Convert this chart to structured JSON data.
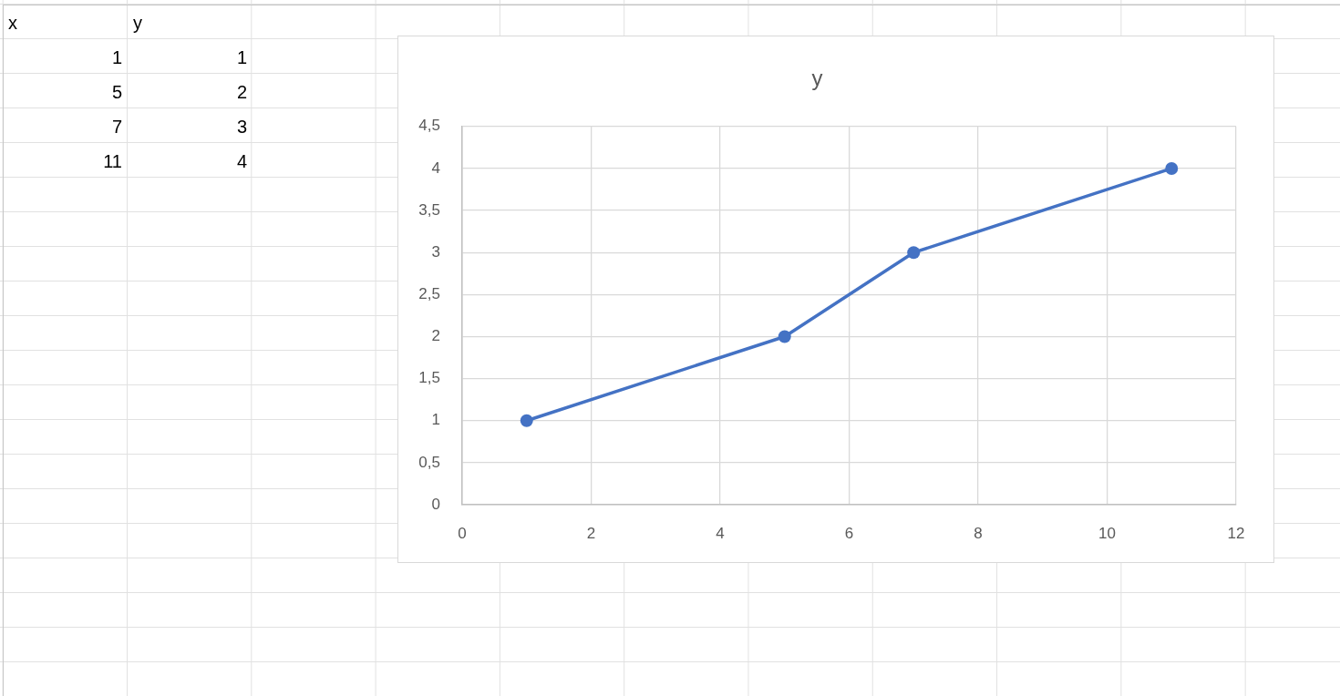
{
  "chart_data": {
    "type": "line",
    "title": "y",
    "annotations": [
      "x",
      "y",
      "1",
      "1",
      "5",
      "2",
      "7",
      "3",
      "11",
      "4"
    ],
    "x": [
      1,
      5,
      7,
      11
    ],
    "values": [
      1,
      2,
      3,
      4
    ],
    "color": "#4472c4",
    "xlim": [
      0,
      12
    ],
    "xticks": [
      0,
      2,
      4,
      6,
      8,
      10,
      12
    ],
    "ylim": [
      0,
      4.5
    ],
    "yticks": [
      0,
      {
        "value": 0.5,
        "label": "0,5"
      },
      1,
      {
        "value": 1.5,
        "label": "1,5"
      },
      2,
      {
        "value": 2.5,
        "label": "2,5"
      },
      3,
      {
        "value": 3.5,
        "label": "3,5"
      },
      4,
      {
        "value": 4.5,
        "label": "4,5"
      }
    ],
    "grid": true,
    "marker": "circle"
  }
}
